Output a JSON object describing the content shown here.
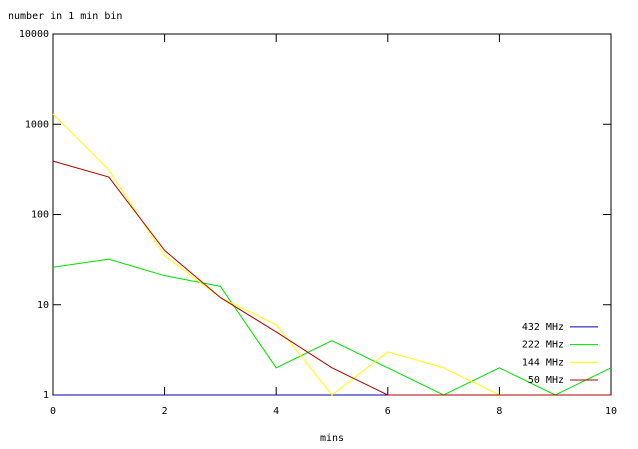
{
  "chart_data": {
    "type": "line",
    "y_label": "number in 1 min bin",
    "x_label": "mins",
    "x": [
      0,
      1,
      2,
      3,
      4,
      5,
      6,
      7,
      8,
      9,
      10
    ],
    "series": [
      {
        "name": "432 MHz",
        "color": "#0000b0",
        "values": [
          1,
          1,
          1,
          1,
          1,
          1,
          1,
          1,
          1,
          1,
          1
        ]
      },
      {
        "name": "222 MHz",
        "color": "#00e000",
        "values": [
          26,
          32,
          21,
          16,
          2,
          4,
          2,
          1,
          2,
          1,
          2
        ]
      },
      {
        "name": "144 MHz",
        "color": "#ffff00",
        "values": [
          1300,
          310,
          35,
          12,
          6,
          1,
          3,
          2,
          1,
          1,
          1
        ]
      },
      {
        "name": "50 MHz",
        "color": "#b00000",
        "values": [
          390,
          260,
          40,
          12,
          5,
          2,
          1,
          1,
          1,
          1,
          1
        ]
      }
    ],
    "xlim": [
      0,
      10
    ],
    "xticks": [
      0,
      2,
      4,
      6,
      8,
      10
    ],
    "ylim": [
      1,
      10000
    ],
    "yticks": [
      1,
      10,
      100,
      1000,
      10000
    ],
    "log_y": true,
    "legend": "bottom-right"
  }
}
